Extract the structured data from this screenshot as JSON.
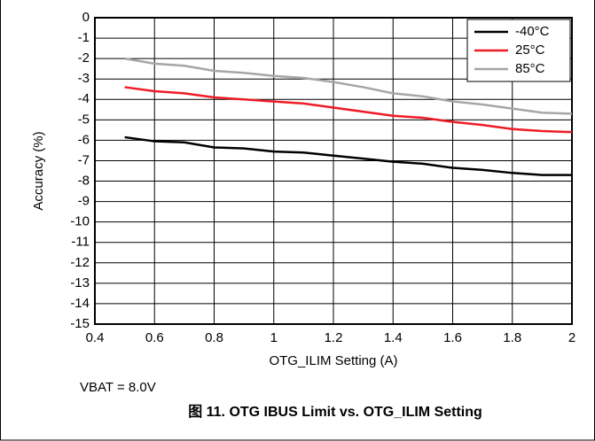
{
  "chart_data": {
    "type": "line",
    "x": [
      0.5,
      0.6,
      0.7,
      0.8,
      0.9,
      1.0,
      1.1,
      1.2,
      1.3,
      1.4,
      1.5,
      1.6,
      1.7,
      1.8,
      1.9,
      2.0
    ],
    "series": [
      {
        "name": "-40°C",
        "color": "#000000",
        "values": [
          -5.85,
          -6.05,
          -6.1,
          -6.35,
          -6.4,
          -6.55,
          -6.6,
          -6.75,
          -6.9,
          -7.05,
          -7.15,
          -7.35,
          -7.45,
          -7.6,
          -7.7,
          -7.7
        ]
      },
      {
        "name": "25°C",
        "color": "#ee1c25",
        "values": [
          -3.4,
          -3.6,
          -3.7,
          -3.9,
          -4.0,
          -4.1,
          -4.2,
          -4.4,
          -4.6,
          -4.8,
          -4.9,
          -5.1,
          -5.25,
          -5.45,
          -5.55,
          -5.6
        ]
      },
      {
        "name": "85°C",
        "color": "#a6a6a6",
        "values": [
          -2.0,
          -2.25,
          -2.35,
          -2.6,
          -2.7,
          -2.85,
          -2.95,
          -3.15,
          -3.4,
          -3.7,
          -3.85,
          -4.1,
          -4.25,
          -4.45,
          -4.65,
          -4.7
        ]
      }
    ],
    "x_label": "OTG_ILIM Setting (A)",
    "y_label": "Accuracy (%)",
    "xlim": [
      0.4,
      2
    ],
    "xticks": [
      0.4,
      0.6,
      0.8,
      1,
      1.2,
      1.4,
      1.6,
      1.8,
      2
    ],
    "ylim": [
      -15,
      0
    ],
    "yticks": [
      0,
      -1,
      -2,
      -3,
      -4,
      -5,
      -6,
      -7,
      -8,
      -9,
      -10,
      -11,
      -12,
      -13,
      -14,
      -15
    ],
    "grid": true,
    "legend": "top-right",
    "annotation": "VBAT = 8.0V",
    "caption": "图 11. OTG IBUS Limit vs. OTG_ILIM Setting"
  }
}
